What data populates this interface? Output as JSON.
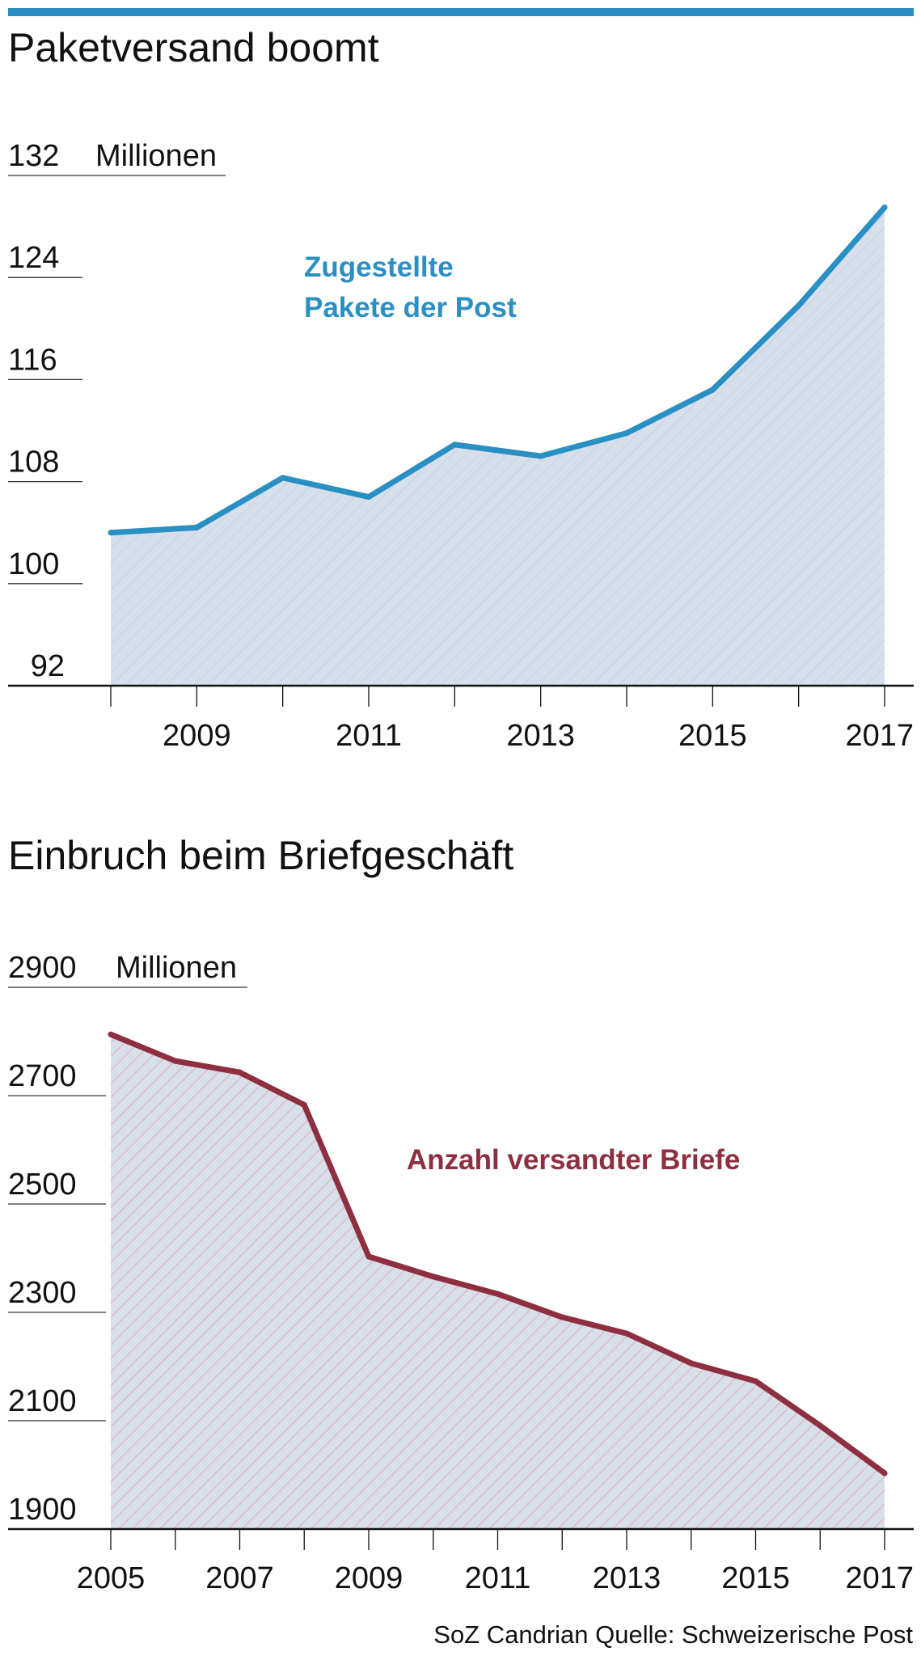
{
  "colors": {
    "top_bar": "#2a8fc3",
    "pakete_line": "#2a8fc3",
    "briefe_line": "#8e2f40",
    "fill": "#d7dfeb",
    "hatch_blue": "#c6d3e6",
    "hatch_red": "#dcbcc4"
  },
  "source": "SoZ Candrian Quelle: Schweizerische Post",
  "chart_data": [
    {
      "type": "area",
      "title": "Paketversand boomt",
      "unit_label": "Millionen",
      "series_label_lines": [
        "Zugestellte",
        "Pakete der Post"
      ],
      "x": [
        2008,
        2009,
        2010,
        2011,
        2012,
        2013,
        2014,
        2015,
        2016,
        2017
      ],
      "values": [
        104.0,
        104.4,
        108.3,
        106.8,
        110.9,
        110.0,
        111.8,
        115.2,
        121.8,
        129.5
      ],
      "ylim": [
        92,
        132
      ],
      "yticks": [
        92,
        100,
        108,
        116,
        124,
        132
      ],
      "xtick_labels": [
        "2009",
        "2011",
        "2013",
        "2015",
        "2017"
      ],
      "xlim": [
        2008,
        2017
      ]
    },
    {
      "type": "area",
      "title": "Einbruch beim Briefgeschäft",
      "unit_label": "Millionen",
      "series_label_lines": [
        "Anzahl versandter Briefe"
      ],
      "x": [
        2005,
        2006,
        2007,
        2008,
        2009,
        2010,
        2011,
        2012,
        2013,
        2014,
        2015,
        2016,
        2017
      ],
      "values": [
        2813,
        2764,
        2743,
        2683,
        2403,
        2366,
        2334,
        2291,
        2261,
        2206,
        2173,
        2091,
        2003
      ],
      "ylim": [
        1900,
        2900
      ],
      "yticks": [
        1900,
        2100,
        2300,
        2500,
        2700,
        2900
      ],
      "xtick_labels": [
        "2005",
        "2007",
        "2009",
        "2011",
        "2013",
        "2015",
        "2017"
      ],
      "xlim": [
        2005,
        2017
      ]
    }
  ]
}
